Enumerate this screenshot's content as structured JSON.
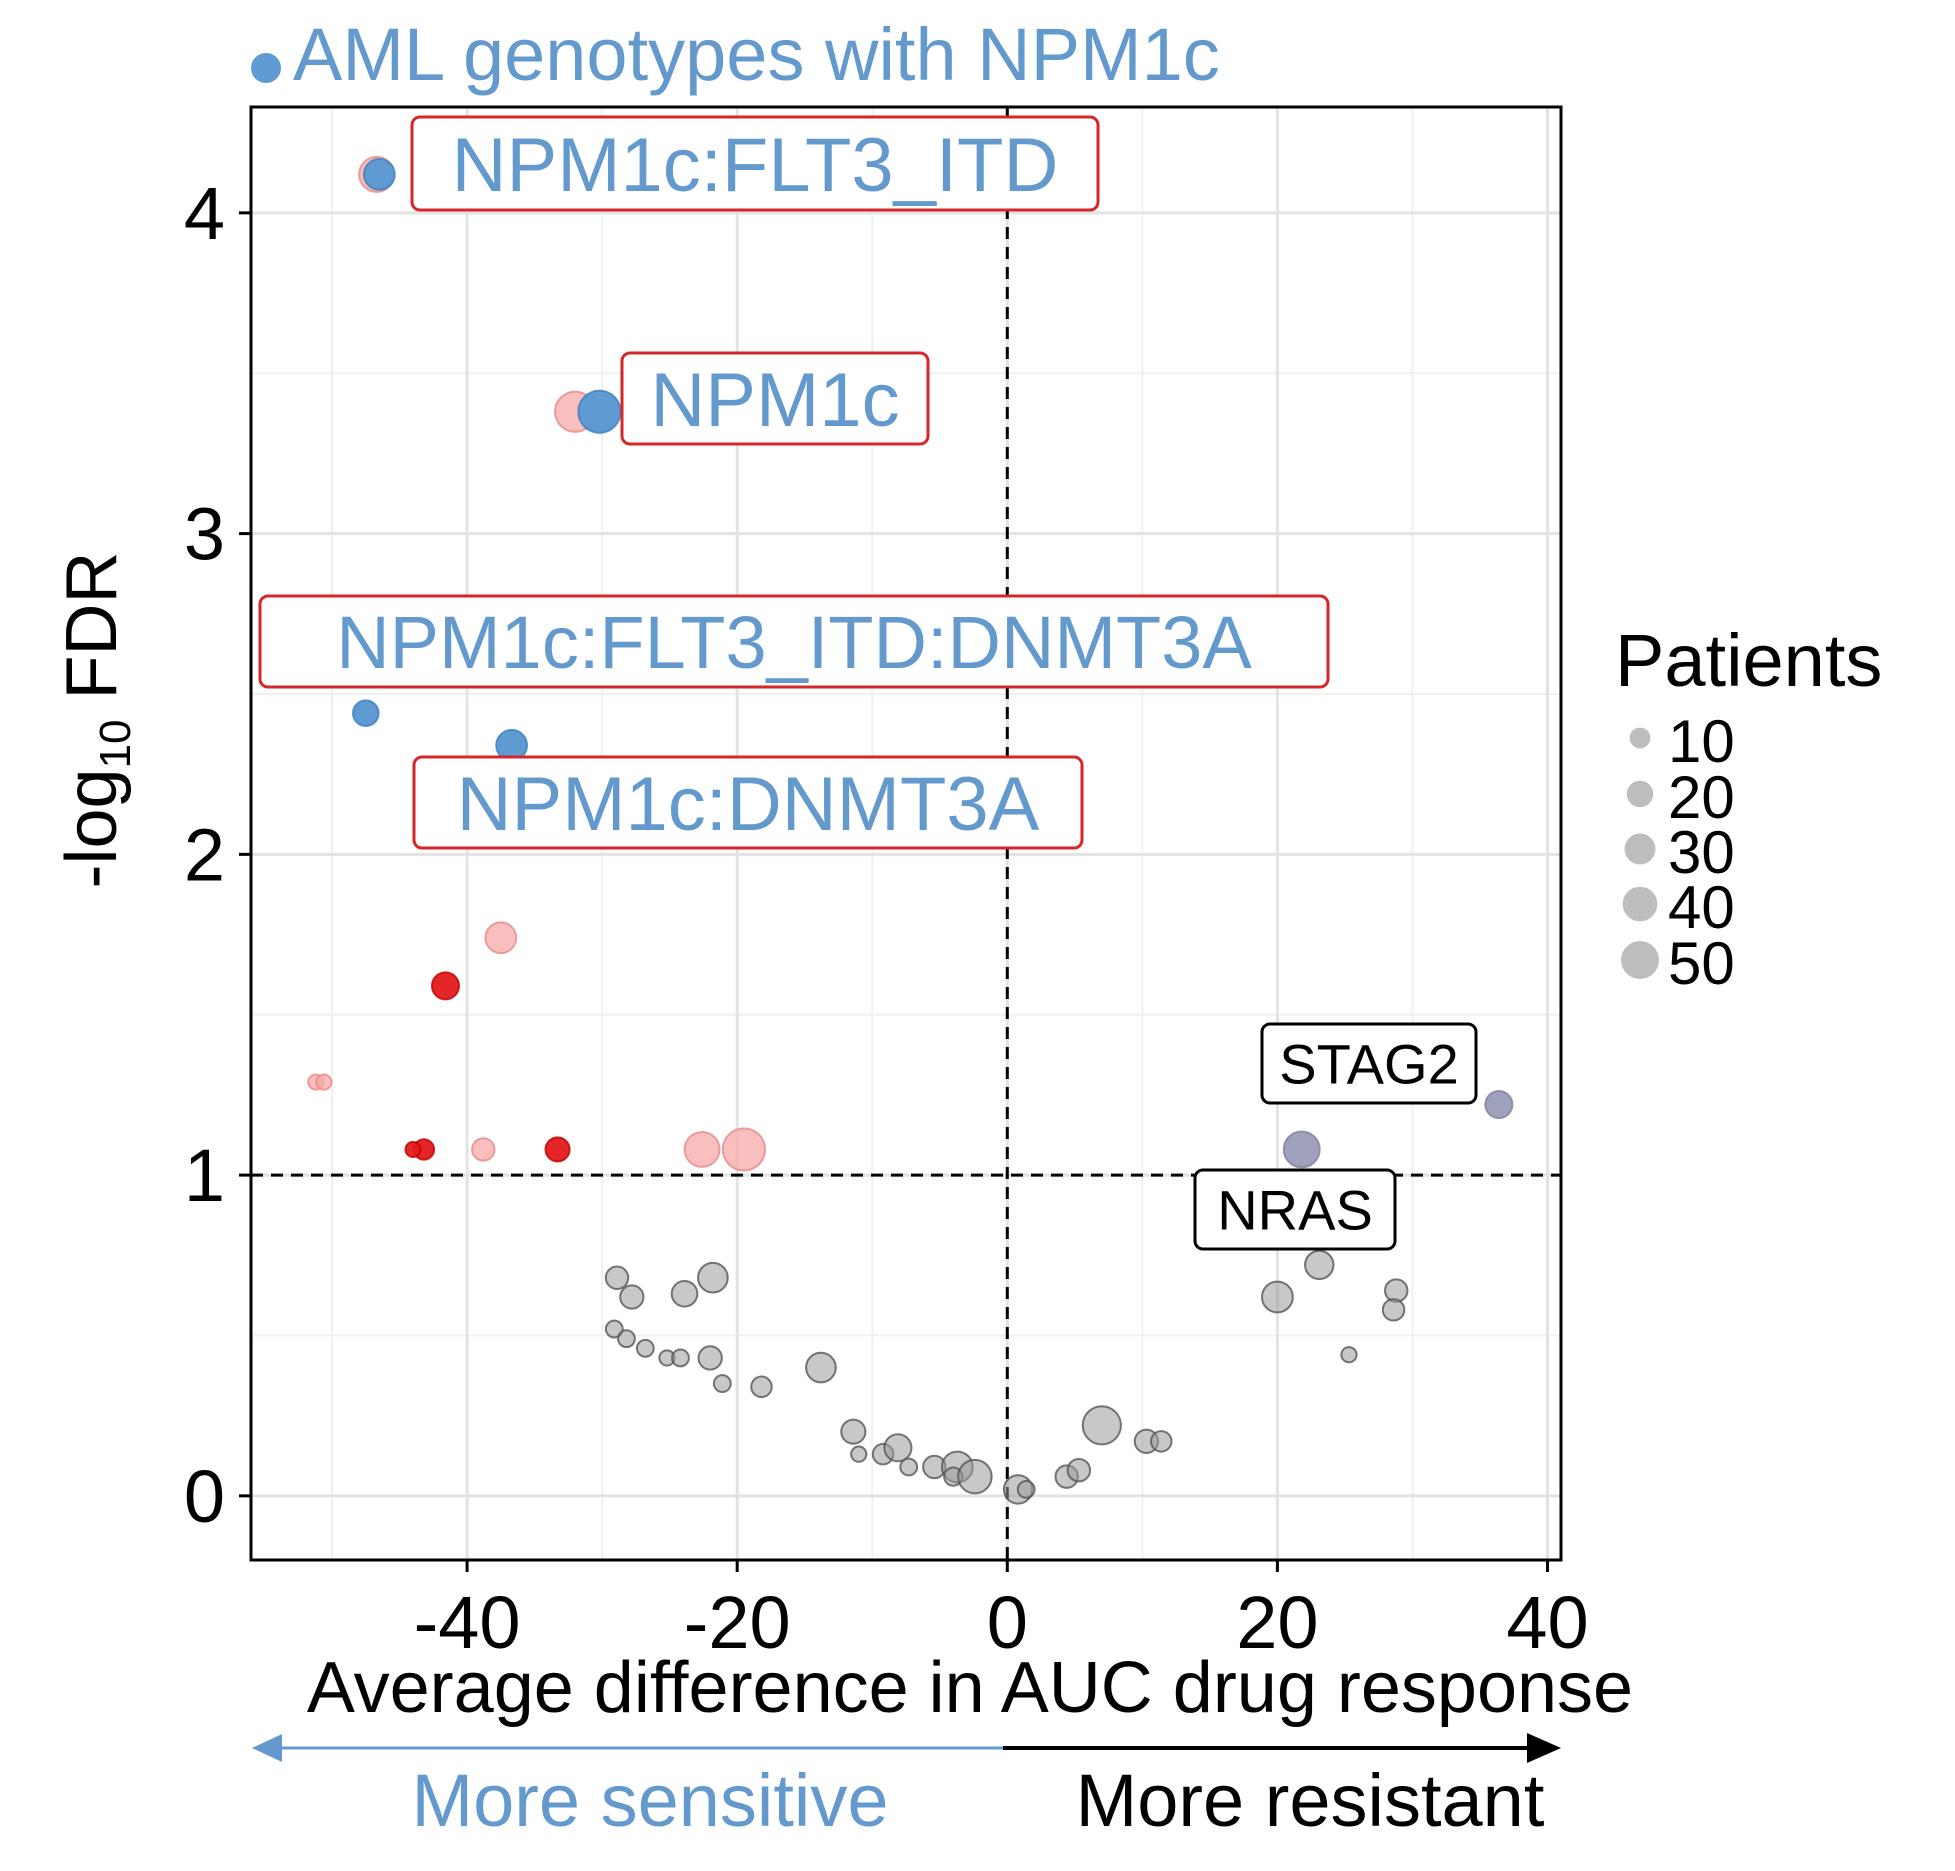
{
  "chart_data": {
    "type": "scatter",
    "title": "AML genotypes with NPM1c",
    "xlabel": "Average difference in AUC drug response",
    "ylabel_prefix": "-log",
    "ylabel_sub": "10",
    "ylabel_suffix": " FDR",
    "xlim": [
      -56,
      41
    ],
    "ylim": [
      -0.2,
      4.33
    ],
    "xticks": [
      -40,
      -20,
      0,
      20,
      40
    ],
    "yticks": [
      0,
      1,
      2,
      3,
      4
    ],
    "xtick_labels": [
      "-40",
      "-20",
      "0",
      "20",
      "40"
    ],
    "ytick_labels": [
      "0",
      "1",
      "2",
      "3",
      "4"
    ],
    "minor_x": [
      -50,
      -30,
      -10,
      10,
      30
    ],
    "minor_y": [
      0.5,
      1.5,
      2.5,
      3.5
    ],
    "grid": true,
    "fdr_threshold": 1,
    "vline_x": 0,
    "legend": {
      "title": "Patients",
      "position": "right",
      "sizes": [
        10,
        20,
        30,
        40,
        50
      ],
      "labels": [
        "10",
        "20",
        "30",
        "40",
        "50"
      ]
    },
    "direction": {
      "left_label": "More sensitive",
      "right_label": "More resistant",
      "left_color": "#6399cc",
      "right_color": "#000000"
    },
    "colors": {
      "npm1c": "#5f9bd2",
      "sig_strong": "#e31a1c",
      "sig_light": "#f7a8a8",
      "grey": "#9a9a9a",
      "lavender": "#9a9cb9",
      "box_red": "#d62728",
      "title_blue": "#6399cc"
    },
    "series": [
      {
        "name": "AML genotypes with NPM1c",
        "color": "#5f9bd2",
        "points": [
          {
            "x": -46.5,
            "y": 4.12,
            "size": 20
          },
          {
            "x": -30.2,
            "y": 3.38,
            "size": 45
          },
          {
            "x": -47.5,
            "y": 2.44,
            "size": 12
          },
          {
            "x": -36.7,
            "y": 2.34,
            "size": 20
          }
        ]
      },
      {
        "group": "significant",
        "color": "#e31a1c",
        "points": [
          {
            "x": -41.6,
            "y": 1.59,
            "size": 14
          },
          {
            "x": -43.2,
            "y": 1.08,
            "size": 6
          },
          {
            "x": -44.0,
            "y": 1.08,
            "size": 2
          },
          {
            "x": -33.3,
            "y": 1.08,
            "size": 10
          }
        ]
      },
      {
        "group": "significant-light",
        "color": "#f7a8a8",
        "points": [
          {
            "x": -46.7,
            "y": 4.12,
            "size": 28
          },
          {
            "x": -32.0,
            "y": 3.38,
            "size": 40
          },
          {
            "x": -37.5,
            "y": 1.74,
            "size": 20
          },
          {
            "x": -51.2,
            "y": 1.29,
            "size": 2
          },
          {
            "x": -50.6,
            "y": 1.29,
            "size": 2
          },
          {
            "x": -38.8,
            "y": 1.08,
            "size": 8
          },
          {
            "x": -22.6,
            "y": 1.08,
            "size": 28
          },
          {
            "x": -19.5,
            "y": 1.08,
            "size": 45
          }
        ]
      },
      {
        "group": "labelled-resistant",
        "color": "#9a9cb9",
        "points": [
          {
            "x": 21.8,
            "y": 1.08,
            "size": 30
          },
          {
            "x": 36.4,
            "y": 1.22,
            "size": 14
          }
        ]
      },
      {
        "group": "not-significant",
        "color": "#9a9a9a",
        "points": [
          {
            "x": -28.9,
            "y": 0.68,
            "size": 8
          },
          {
            "x": -27.8,
            "y": 0.62,
            "size": 9
          },
          {
            "x": -23.9,
            "y": 0.63,
            "size": 12
          },
          {
            "x": -21.8,
            "y": 0.68,
            "size": 18
          },
          {
            "x": -29.1,
            "y": 0.52,
            "size": 3
          },
          {
            "x": -28.2,
            "y": 0.49,
            "size": 3
          },
          {
            "x": -26.8,
            "y": 0.46,
            "size": 3
          },
          {
            "x": -25.2,
            "y": 0.43,
            "size": 2
          },
          {
            "x": -24.2,
            "y": 0.43,
            "size": 3
          },
          {
            "x": -22.0,
            "y": 0.43,
            "size": 9
          },
          {
            "x": -21.1,
            "y": 0.35,
            "size": 3
          },
          {
            "x": -18.2,
            "y": 0.34,
            "size": 6
          },
          {
            "x": -13.8,
            "y": 0.4,
            "size": 18
          },
          {
            "x": -11.4,
            "y": 0.2,
            "size": 10
          },
          {
            "x": -11.0,
            "y": 0.13,
            "size": 2
          },
          {
            "x": -9.2,
            "y": 0.13,
            "size": 6
          },
          {
            "x": -8.1,
            "y": 0.15,
            "size": 14
          },
          {
            "x": -7.3,
            "y": 0.09,
            "size": 3
          },
          {
            "x": -5.4,
            "y": 0.09,
            "size": 8
          },
          {
            "x": -3.7,
            "y": 0.09,
            "size": 20
          },
          {
            "x": -4.0,
            "y": 0.06,
            "size": 4
          },
          {
            "x": -2.4,
            "y": 0.06,
            "size": 25
          },
          {
            "x": 0.8,
            "y": 0.02,
            "size": 16
          },
          {
            "x": 1.4,
            "y": 0.02,
            "size": 3
          },
          {
            "x": 4.4,
            "y": 0.06,
            "size": 8
          },
          {
            "x": 5.3,
            "y": 0.08,
            "size": 8
          },
          {
            "x": 7.0,
            "y": 0.22,
            "size": 35
          },
          {
            "x": 10.3,
            "y": 0.17,
            "size": 9
          },
          {
            "x": 11.4,
            "y": 0.17,
            "size": 6
          },
          {
            "x": 20.0,
            "y": 0.62,
            "size": 20
          },
          {
            "x": 23.1,
            "y": 0.72,
            "size": 16
          },
          {
            "x": 28.8,
            "y": 0.64,
            "size": 8
          },
          {
            "x": 28.6,
            "y": 0.58,
            "size": 7
          },
          {
            "x": 25.3,
            "y": 0.44,
            "size": 2
          }
        ]
      }
    ],
    "annotations": [
      {
        "text": "NPM1c:FLT3_ITD",
        "style": "blue"
      },
      {
        "text": "NPM1c",
        "style": "blue"
      },
      {
        "text": "NPM1c:FLT3_ITD:DNMT3A",
        "style": "blue"
      },
      {
        "text": "NPM1c:DNMT3A",
        "style": "blue"
      },
      {
        "text": "STAG2",
        "style": "black"
      },
      {
        "text": "NRAS",
        "style": "black"
      }
    ]
  }
}
